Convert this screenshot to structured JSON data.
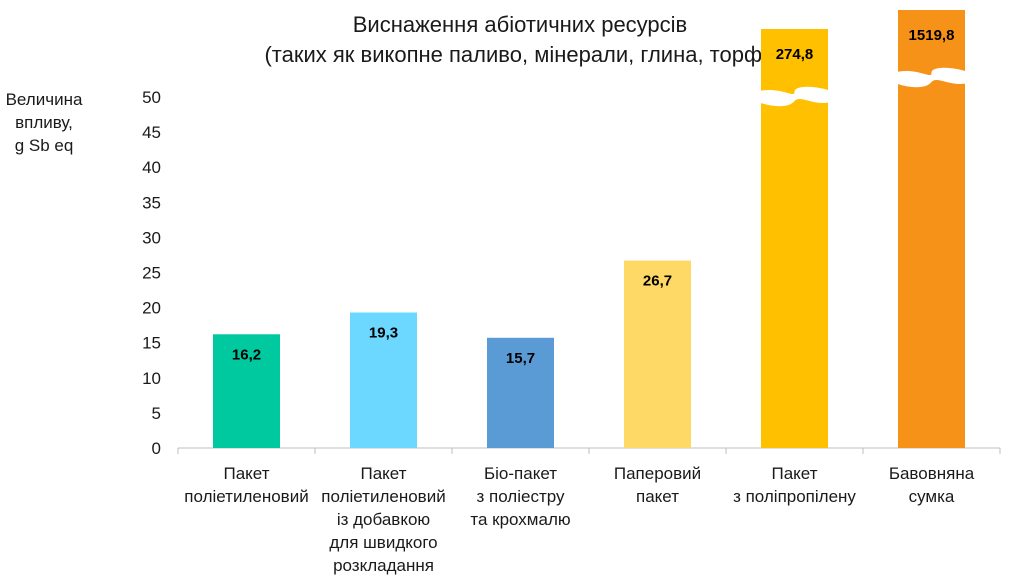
{
  "chart_data": {
    "type": "bar",
    "title": [
      "Виснаження абіотичних ресурсів",
      "(таких як викопне паливо, мінерали, глина, торф)."
    ],
    "ylabel": [
      "Величина",
      "впливу,",
      "g Sb eq"
    ],
    "ylim": [
      0,
      50
    ],
    "yticks": [
      0,
      5,
      10,
      15,
      20,
      25,
      30,
      35,
      40,
      45,
      50
    ],
    "categories": [
      [
        "Пакет",
        "поліетиленовий"
      ],
      [
        "Пакет",
        "поліетиленовий",
        "із добавкою",
        "для швидкого",
        "розкладання"
      ],
      [
        "Біо-пакет",
        "з поліестру",
        "та крохмалю"
      ],
      [
        "Паперовий",
        "пакет"
      ],
      [
        "Пакет",
        "з поліпропілену"
      ],
      [
        "Бавовняна",
        "сумка"
      ]
    ],
    "values": [
      16.2,
      19.3,
      15.7,
      26.7,
      274.8,
      1519.8
    ],
    "data_labels": [
      "16,2",
      "19,3",
      "15,7",
      "26,7",
      "274,8",
      "1519,8"
    ],
    "colors": [
      "#00C9A0",
      "#6CD8FF",
      "#5B9BD5",
      "#FFD966",
      "#FFC000",
      "#F79219"
    ],
    "axis_break": true
  }
}
